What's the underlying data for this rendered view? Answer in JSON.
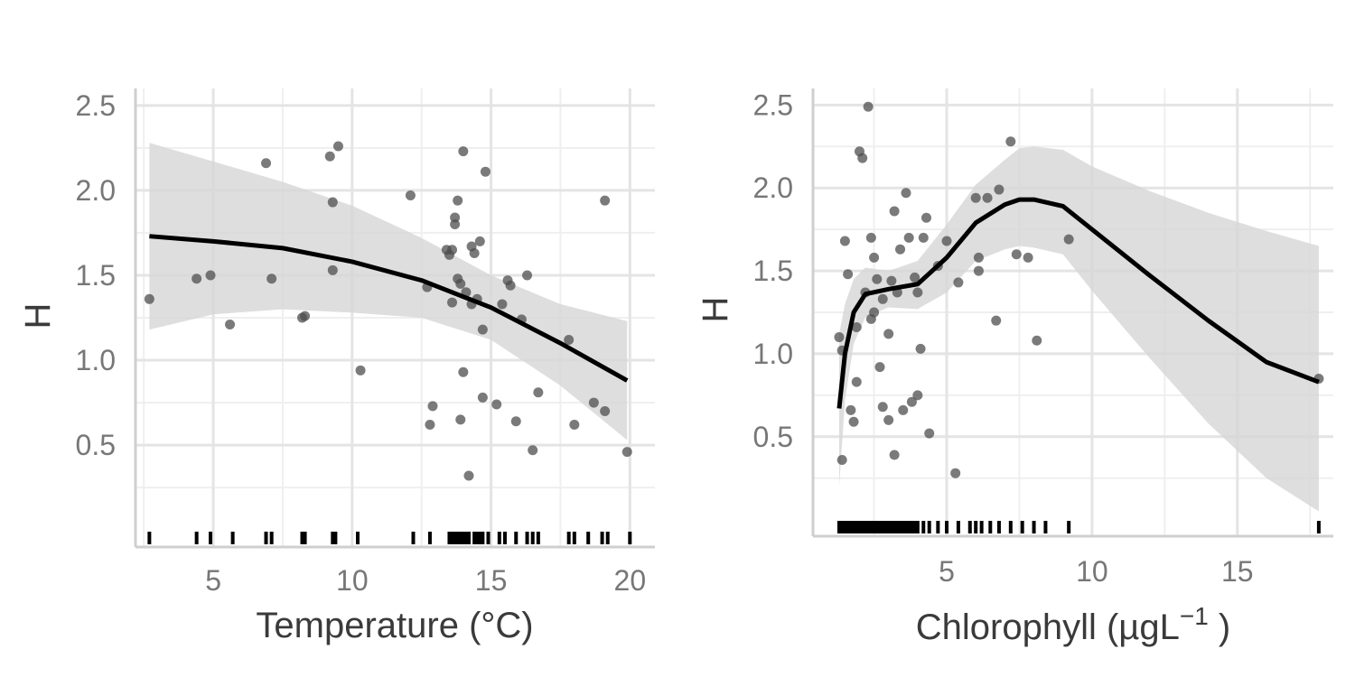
{
  "chart_data": [
    {
      "type": "scatter",
      "xlabel": "Temperature (°C)",
      "ylabel": "H",
      "xlim": [
        2.2,
        20.9
      ],
      "ylim": [
        -0.1,
        2.6
      ],
      "x_ticks": [
        5,
        10,
        15,
        20
      ],
      "x_tick_labels": [
        "5",
        "10",
        "15",
        "20"
      ],
      "y_ticks": [
        0.5,
        1.0,
        1.5,
        2.0,
        2.5
      ],
      "y_tick_labels": [
        "0.5",
        "1.0",
        "1.5",
        "2.0",
        "2.5"
      ],
      "grid": true,
      "points": [
        [
          2.7,
          1.36
        ],
        [
          4.4,
          1.48
        ],
        [
          4.9,
          1.5
        ],
        [
          5.6,
          1.21
        ],
        [
          6.9,
          2.16
        ],
        [
          7.1,
          1.48
        ],
        [
          8.2,
          1.25
        ],
        [
          8.3,
          1.26
        ],
        [
          9.2,
          2.2
        ],
        [
          9.3,
          1.93
        ],
        [
          9.3,
          1.53
        ],
        [
          9.5,
          2.26
        ],
        [
          10.3,
          0.94
        ],
        [
          12.1,
          1.97
        ],
        [
          12.7,
          1.43
        ],
        [
          12.8,
          0.62
        ],
        [
          12.9,
          0.73
        ],
        [
          13.4,
          1.65
        ],
        [
          13.5,
          1.62
        ],
        [
          13.6,
          1.65
        ],
        [
          13.6,
          1.34
        ],
        [
          13.7,
          1.84
        ],
        [
          13.7,
          1.8
        ],
        [
          13.8,
          1.94
        ],
        [
          13.8,
          1.48
        ],
        [
          13.9,
          1.45
        ],
        [
          13.9,
          0.65
        ],
        [
          14.0,
          2.23
        ],
        [
          14.0,
          0.93
        ],
        [
          14.1,
          1.4
        ],
        [
          14.2,
          0.32
        ],
        [
          14.3,
          1.33
        ],
        [
          14.3,
          1.67
        ],
        [
          14.4,
          1.63
        ],
        [
          14.5,
          1.36
        ],
        [
          14.6,
          1.7
        ],
        [
          14.7,
          1.18
        ],
        [
          14.7,
          0.78
        ],
        [
          14.8,
          2.11
        ],
        [
          15.2,
          0.74
        ],
        [
          15.4,
          1.33
        ],
        [
          15.6,
          1.47
        ],
        [
          15.7,
          1.44
        ],
        [
          15.9,
          0.64
        ],
        [
          16.1,
          1.24
        ],
        [
          16.3,
          1.5
        ],
        [
          16.5,
          0.47
        ],
        [
          16.7,
          0.81
        ],
        [
          17.8,
          1.12
        ],
        [
          18.0,
          0.62
        ],
        [
          18.7,
          0.75
        ],
        [
          19.1,
          0.7
        ],
        [
          19.1,
          1.94
        ],
        [
          19.9,
          0.46
        ]
      ],
      "fit_line": [
        [
          2.7,
          1.73
        ],
        [
          5,
          1.7
        ],
        [
          7.5,
          1.66
        ],
        [
          10,
          1.58
        ],
        [
          12.5,
          1.47
        ],
        [
          15,
          1.31
        ],
        [
          17.5,
          1.1
        ],
        [
          19.9,
          0.88
        ]
      ],
      "ci_band": [
        [
          2.7,
          1.18,
          2.28
        ],
        [
          5,
          1.27,
          2.17
        ],
        [
          7.5,
          1.3,
          2.05
        ],
        [
          10,
          1.28,
          1.91
        ],
        [
          12.5,
          1.25,
          1.72
        ],
        [
          15,
          1.12,
          1.5
        ],
        [
          17.5,
          0.85,
          1.33
        ],
        [
          19.9,
          0.53,
          1.23
        ]
      ],
      "rug": [
        2.7,
        4.4,
        4.9,
        5.7,
        6.9,
        7.1,
        8.2,
        8.3,
        9.3,
        9.4,
        10.2,
        12.2,
        12.8,
        13.5,
        13.6,
        13.7,
        13.8,
        13.9,
        14.0,
        14.1,
        14.2,
        14.4,
        14.5,
        14.6,
        14.7,
        14.9,
        15.3,
        15.5,
        15.9,
        16.3,
        16.5,
        16.7,
        17.8,
        18.0,
        18.5,
        19.0,
        19.2,
        20.0
      ]
    },
    {
      "type": "scatter",
      "xlabel": "Chlorophyll (µgL",
      "xlabel_sup": "−1",
      "xlabel_end": " )",
      "ylabel": "H",
      "xlim": [
        0.4,
        18.3
      ],
      "ylim": [
        -0.1,
        2.6
      ],
      "x_ticks": [
        5,
        10,
        15
      ],
      "x_tick_labels": [
        "5",
        "10",
        "15"
      ],
      "y_ticks": [
        0.5,
        1.0,
        1.5,
        2.0,
        2.5
      ],
      "y_tick_labels": [
        "0.5",
        "1.0",
        "1.5",
        "2.0",
        "2.5"
      ],
      "grid": true,
      "points": [
        [
          1.3,
          1.1
        ],
        [
          1.4,
          0.36
        ],
        [
          1.4,
          1.02
        ],
        [
          1.5,
          1.68
        ],
        [
          1.6,
          1.48
        ],
        [
          1.7,
          0.66
        ],
        [
          1.8,
          0.59
        ],
        [
          1.9,
          0.83
        ],
        [
          1.9,
          1.16
        ],
        [
          2.0,
          2.22
        ],
        [
          2.1,
          2.18
        ],
        [
          2.2,
          1.37
        ],
        [
          2.3,
          2.49
        ],
        [
          2.4,
          1.21
        ],
        [
          2.4,
          1.7
        ],
        [
          2.5,
          1.58
        ],
        [
          2.5,
          1.25
        ],
        [
          2.6,
          1.45
        ],
        [
          2.7,
          0.92
        ],
        [
          2.8,
          0.68
        ],
        [
          2.8,
          1.33
        ],
        [
          3.0,
          1.12
        ],
        [
          3.0,
          0.6
        ],
        [
          3.1,
          1.44
        ],
        [
          3.2,
          0.39
        ],
        [
          3.2,
          1.86
        ],
        [
          3.3,
          1.37
        ],
        [
          3.4,
          1.63
        ],
        [
          3.5,
          0.66
        ],
        [
          3.6,
          1.97
        ],
        [
          3.7,
          1.7
        ],
        [
          3.8,
          0.71
        ],
        [
          3.9,
          1.46
        ],
        [
          4.0,
          1.37
        ],
        [
          4.0,
          0.75
        ],
        [
          4.1,
          1.03
        ],
        [
          4.2,
          1.7
        ],
        [
          4.3,
          1.82
        ],
        [
          4.4,
          0.52
        ],
        [
          4.7,
          1.53
        ],
        [
          5.0,
          1.68
        ],
        [
          5.3,
          0.28
        ],
        [
          5.4,
          1.43
        ],
        [
          6.0,
          1.94
        ],
        [
          6.1,
          1.58
        ],
        [
          6.1,
          1.5
        ],
        [
          6.4,
          1.94
        ],
        [
          6.7,
          1.2
        ],
        [
          6.8,
          1.99
        ],
        [
          7.2,
          2.28
        ],
        [
          7.4,
          1.6
        ],
        [
          7.8,
          1.58
        ],
        [
          8.1,
          1.08
        ],
        [
          9.2,
          1.69
        ],
        [
          17.8,
          0.85
        ]
      ],
      "fit_line": [
        [
          1.3,
          0.67
        ],
        [
          1.5,
          1.0
        ],
        [
          1.8,
          1.25
        ],
        [
          2.2,
          1.36
        ],
        [
          3,
          1.39
        ],
        [
          4,
          1.42
        ],
        [
          5,
          1.58
        ],
        [
          6,
          1.79
        ],
        [
          7,
          1.9
        ],
        [
          7.5,
          1.93
        ],
        [
          8,
          1.93
        ],
        [
          9,
          1.89
        ],
        [
          10,
          1.75
        ],
        [
          12,
          1.47
        ],
        [
          14,
          1.2
        ],
        [
          16,
          0.95
        ],
        [
          17.8,
          0.83
        ]
      ],
      "ci_band": [
        [
          1.3,
          0.2,
          1.12
        ],
        [
          1.5,
          0.72,
          1.3
        ],
        [
          1.8,
          1.06,
          1.45
        ],
        [
          2.2,
          1.22,
          1.52
        ],
        [
          3,
          1.28,
          1.5
        ],
        [
          4,
          1.27,
          1.56
        ],
        [
          5,
          1.37,
          1.78
        ],
        [
          6,
          1.56,
          2.02
        ],
        [
          7,
          1.63,
          2.17
        ],
        [
          7.5,
          1.65,
          2.24
        ],
        [
          8,
          1.64,
          2.25
        ],
        [
          9,
          1.6,
          2.23
        ],
        [
          10,
          1.38,
          2.13
        ],
        [
          12,
          0.97,
          1.98
        ],
        [
          14,
          0.58,
          1.85
        ],
        [
          16,
          0.25,
          1.74
        ],
        [
          17.8,
          0.05,
          1.65
        ]
      ],
      "rug": [
        1.3,
        1.4,
        1.5,
        1.6,
        1.7,
        1.8,
        1.9,
        2.0,
        2.1,
        2.2,
        2.3,
        2.4,
        2.5,
        2.6,
        2.7,
        2.8,
        2.9,
        3.0,
        3.1,
        3.2,
        3.3,
        3.4,
        3.5,
        3.6,
        3.7,
        3.8,
        3.9,
        4.0,
        4.2,
        4.4,
        4.7,
        5.0,
        5.4,
        5.8,
        6.0,
        6.2,
        6.5,
        6.8,
        7.2,
        7.6,
        8.0,
        8.4,
        9.2,
        17.8
      ]
    }
  ]
}
